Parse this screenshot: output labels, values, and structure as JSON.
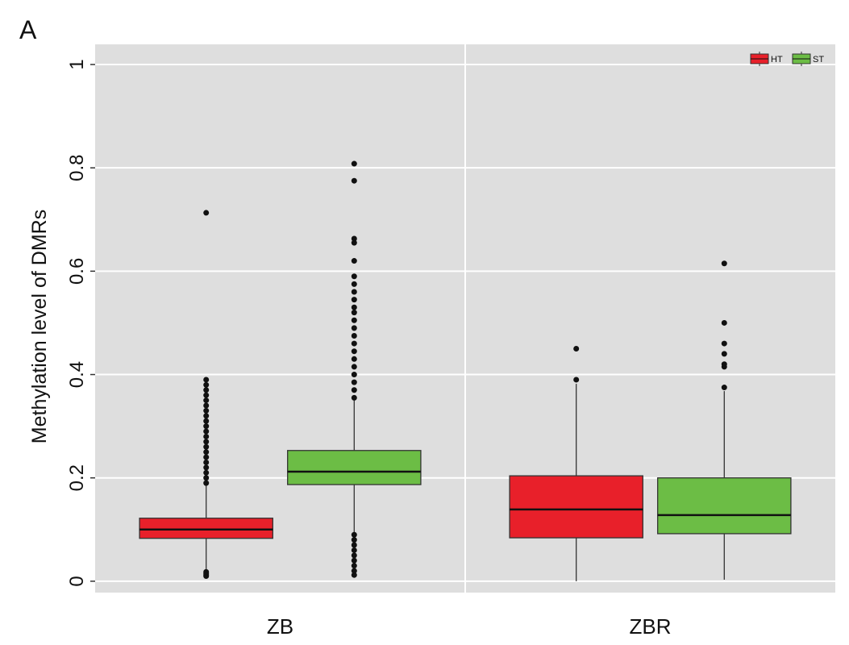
{
  "chart_data": {
    "type": "boxplot",
    "panel_label": "A",
    "ylabel": "Methylation level of DMRs",
    "categories": [
      "ZB",
      "ZBR"
    ],
    "ylim": [
      -0.022,
      1.039
    ],
    "yticks": [
      0,
      0.2,
      0.4,
      0.6,
      0.8,
      1
    ],
    "grid": true,
    "legend_position": "top-right",
    "series": [
      {
        "name": "HT",
        "color": "#e8202a",
        "boxes": [
          {
            "q1": 0.083,
            "median": 0.1,
            "q3": 0.122,
            "whisker_low": 0.023,
            "whisker_high": 0.185,
            "outliers": [
              0.01,
              0.012,
              0.015,
              0.018,
              0.19,
              0.2,
              0.21,
              0.22,
              0.23,
              0.24,
              0.25,
              0.26,
              0.27,
              0.28,
              0.29,
              0.3,
              0.31,
              0.32,
              0.33,
              0.34,
              0.35,
              0.36,
              0.37,
              0.38,
              0.39,
              0.713
            ]
          },
          {
            "q1": 0.084,
            "median": 0.139,
            "q3": 0.204,
            "whisker_low": 0,
            "whisker_high": 0.382,
            "outliers": [
              0.39,
              0.45
            ]
          }
        ]
      },
      {
        "name": "ST",
        "color": "#6cbd45",
        "boxes": [
          {
            "q1": 0.187,
            "median": 0.212,
            "q3": 0.253,
            "whisker_low": 0.095,
            "whisker_high": 0.35,
            "outliers": [
              0.012,
              0.02,
              0.03,
              0.04,
              0.05,
              0.06,
              0.07,
              0.08,
              0.09,
              0.355,
              0.37,
              0.385,
              0.4,
              0.415,
              0.43,
              0.445,
              0.46,
              0.475,
              0.49,
              0.505,
              0.52,
              0.53,
              0.545,
              0.56,
              0.575,
              0.59,
              0.62,
              0.655,
              0.663,
              0.775,
              0.808
            ]
          },
          {
            "q1": 0.092,
            "median": 0.128,
            "q3": 0.2,
            "whisker_low": 0.003,
            "whisker_high": 0.368,
            "outliers": [
              0.375,
              0.415,
              0.42,
              0.44,
              0.46,
              0.5,
              0.615
            ]
          }
        ]
      }
    ]
  }
}
